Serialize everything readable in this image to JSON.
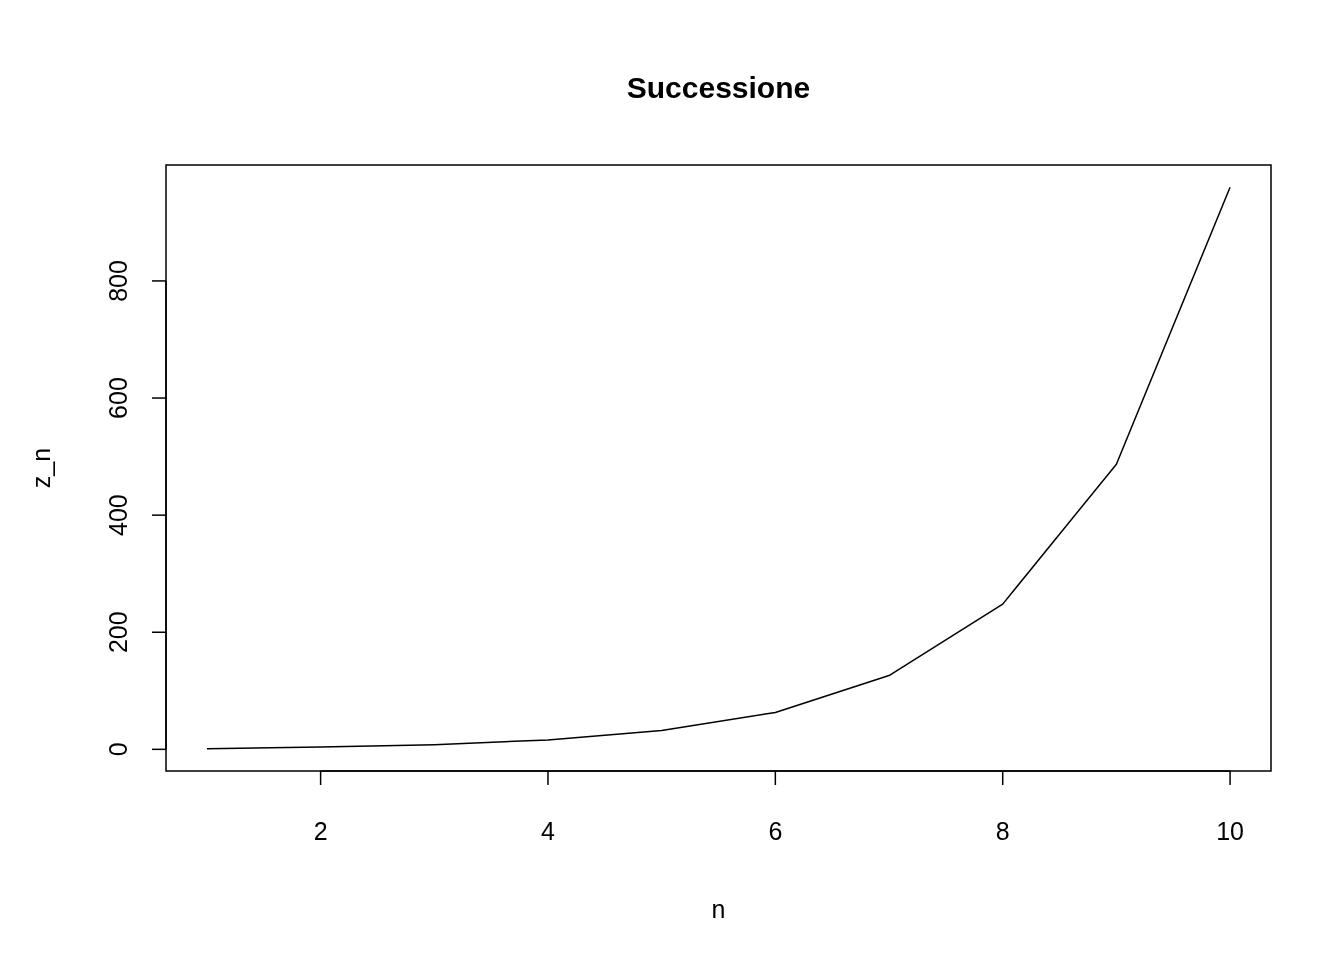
{
  "chart_data": {
    "type": "line",
    "title": "Successione",
    "xlabel": "n",
    "ylabel": "z_n",
    "x": [
      1,
      2,
      3,
      4,
      5,
      6,
      7,
      8,
      9,
      10
    ],
    "series": [
      {
        "color": "#000000",
        "values": [
          1,
          4,
          8,
          16,
          32,
          63,
          126,
          248,
          487,
          960
        ]
      }
    ],
    "xlim": [
      0.64,
      10.36
    ],
    "xticks": [
      2,
      4,
      6,
      8,
      10
    ],
    "ylim": [
      -37,
      998
    ],
    "yticks": [
      0,
      200,
      400,
      600,
      800
    ],
    "marker": "none",
    "line_style": "solid"
  }
}
